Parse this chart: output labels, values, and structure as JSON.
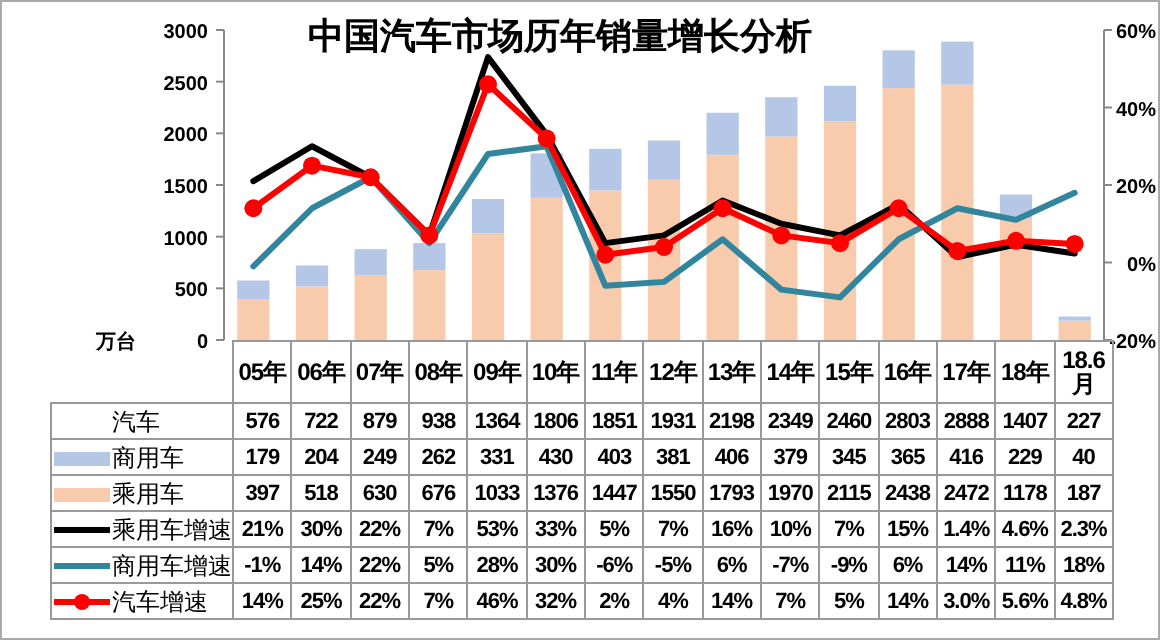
{
  "chart_data": {
    "type": "bar",
    "title": "中国汽车市场历年销量增长分析",
    "ylabel": "万台",
    "categories": [
      "05年",
      "06年",
      "07年",
      "08年",
      "09年",
      "10年",
      "11年",
      "12年",
      "13年",
      "14年",
      "15年",
      "16年",
      "17年",
      "18年",
      "18.6月"
    ],
    "stacked": true,
    "data_labels": true,
    "legend": "bottom",
    "annotations": [
      "汽车"
    ],
    "totals": [
      "576",
      "722",
      "879",
      "938",
      "1364",
      "1806",
      "1851",
      "1931",
      "2198",
      "2349",
      "2460",
      "2803",
      "2888",
      "1407",
      "227"
    ],
    "ylim": [
      0,
      3000
    ],
    "yticks": [
      0,
      500,
      1000,
      1500,
      2000,
      2500,
      3000
    ],
    "y2lim": [
      -20,
      60
    ],
    "y2ticks": [
      {
        "value": -20,
        "label": "-20%"
      },
      {
        "value": 0,
        "label": "0%"
      },
      {
        "value": 20,
        "label": "20%"
      },
      {
        "value": 40,
        "label": "40%"
      },
      {
        "value": 60,
        "label": "60%"
      }
    ],
    "series": [
      {
        "name": "乘用车",
        "color": "#f8cbad",
        "values": [
          397,
          518,
          630,
          676,
          1033,
          1376,
          1447,
          1550,
          1793,
          1970,
          2115,
          2438,
          2472,
          1178,
          187
        ]
      },
      {
        "name": "商用车",
        "color": "#b4c7e7",
        "values": [
          179,
          204,
          249,
          262,
          331,
          430,
          403,
          381,
          406,
          379,
          345,
          365,
          416,
          229,
          40
        ]
      },
      {
        "name": "乘用车增速",
        "type": "line",
        "axis": "y2",
        "color": "#000000",
        "marker": "none",
        "values": [
          21,
          30,
          22,
          7,
          53,
          33,
          5,
          7,
          16,
          10,
          7,
          15,
          1.4,
          4.6,
          2.3
        ],
        "value_labels": [
          "21%",
          "30%",
          "22%",
          "7%",
          "53%",
          "33%",
          "5%",
          "7%",
          "16%",
          "10%",
          "7%",
          "15%",
          "1.4%",
          "4.6%",
          "2.3%"
        ]
      },
      {
        "name": "商用车增速",
        "type": "line",
        "axis": "y2",
        "color": "#31859c",
        "marker": "none",
        "values": [
          -1,
          14,
          22,
          5,
          28,
          30,
          -6,
          -5,
          6,
          -7,
          -9,
          6,
          14,
          11,
          18
        ],
        "value_labels": [
          "-1%",
          "14%",
          "22%",
          "5%",
          "28%",
          "30%",
          "-6%",
          "-5%",
          "6%",
          "-7%",
          "-9%",
          "6%",
          "14%",
          "11%",
          "18%"
        ]
      },
      {
        "name": "汽车增速",
        "type": "line",
        "axis": "y2",
        "color": "#ff0000",
        "marker": "circle",
        "values": [
          14,
          25,
          22,
          7,
          46,
          32,
          2,
          4,
          14,
          7,
          5,
          14,
          3.0,
          5.6,
          4.8
        ],
        "value_labels": [
          "14%",
          "25%",
          "22%",
          "7%",
          "46%",
          "32%",
          "2%",
          "4%",
          "14%",
          "7%",
          "5%",
          "14%",
          "3.0%",
          "5.6%",
          "4.8%"
        ]
      }
    ]
  }
}
